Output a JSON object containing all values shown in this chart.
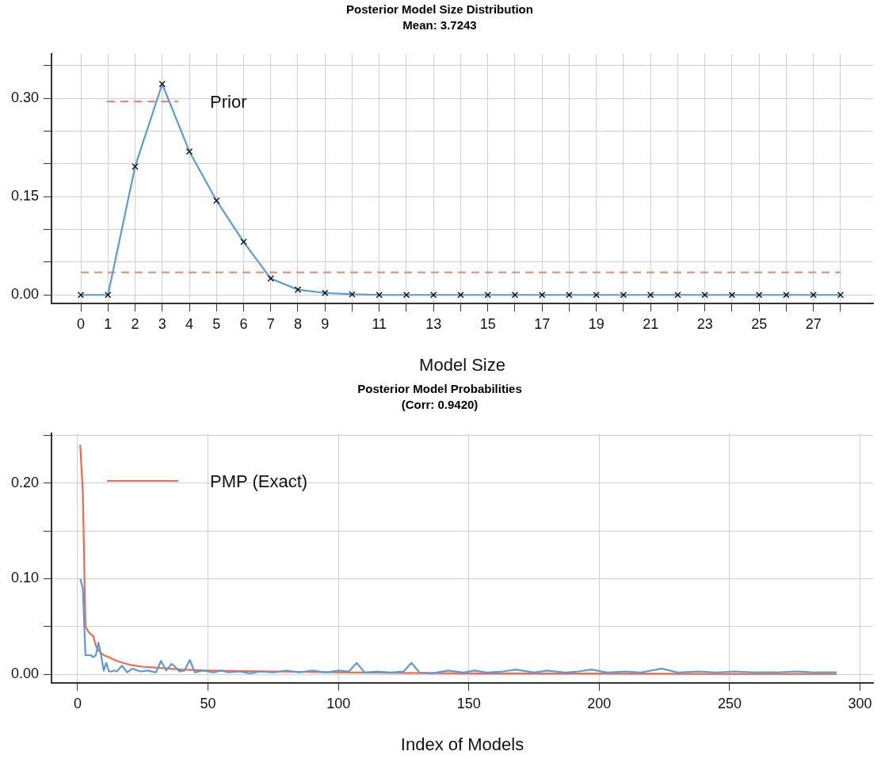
{
  "chart_data": [
    {
      "type": "line",
      "title": "Posterior Model Size Distribution",
      "subtitle": "Mean: 3.7243",
      "xlabel": "Model Size",
      "grid": true,
      "legend": "top left",
      "x": [
        0,
        1,
        2,
        3,
        4,
        5,
        6,
        7,
        8,
        9,
        10,
        11,
        12,
        13,
        14,
        15,
        16,
        17,
        18,
        19,
        20,
        21,
        22,
        23,
        24,
        25,
        26,
        27,
        28
      ],
      "xlim": [
        -1.08,
        29.2
      ],
      "xticks": [
        0,
        1,
        2,
        3,
        4,
        5,
        6,
        7,
        8,
        9,
        {
          "value": 10,
          "label": null
        },
        11,
        {
          "value": 12,
          "label": null
        },
        13,
        {
          "value": 14,
          "label": null
        },
        15,
        {
          "value": 16,
          "label": null
        },
        17,
        {
          "value": 18,
          "label": null
        },
        19,
        {
          "value": 20,
          "label": null
        },
        21,
        {
          "value": 22,
          "label": null
        },
        23,
        {
          "value": 24,
          "label": null
        },
        25,
        {
          "value": 26,
          "label": null
        },
        27,
        {
          "value": 28,
          "label": null
        }
      ],
      "ylim": [
        -0.013,
        0.368
      ],
      "yticks": [
        {
          "value": 0,
          "label": "0.00"
        },
        {
          "value": 0.05,
          "label": null
        },
        {
          "value": 0.1,
          "label": null
        },
        {
          "value": 0.15,
          "label": "0.15"
        },
        {
          "value": 0.2,
          "label": null
        },
        {
          "value": 0.25,
          "label": null
        },
        {
          "value": 0.3,
          "label": "0.30"
        },
        {
          "value": 0.35,
          "label": null
        }
      ],
      "series": [
        {
          "color": "#5b9bd5",
          "marker": "cross",
          "line_style": "solid",
          "values": [
            0,
            0,
            0.196,
            0.322,
            0.219,
            0.144,
            0.081,
            0.025,
            0.008,
            0.003,
            0.001,
            0,
            0,
            0,
            0,
            0,
            0,
            0,
            0,
            0,
            0,
            0,
            0,
            0,
            0,
            0,
            0,
            0,
            0
          ]
        },
        {
          "name": "Prior",
          "color": "#f4826e",
          "marker": "none",
          "line_style": "dashed",
          "values": [
            0.0345,
            0.0345,
            0.0345,
            0.0345,
            0.0345,
            0.0345,
            0.0345,
            0.0345,
            0.0345,
            0.0345,
            0.0345,
            0.0345,
            0.0345,
            0.0345,
            0.0345,
            0.0345,
            0.0345,
            0.0345,
            0.0345,
            0.0345,
            0.0345,
            0.0345,
            0.0345,
            0.0345,
            0.0345,
            0.0345,
            0.0345,
            0.0345,
            0.0345
          ]
        }
      ]
    },
    {
      "type": "line",
      "title": "Posterior Model Probabilities",
      "subtitle": "(Corr: 0.9420)",
      "xlabel": "Index of Models",
      "grid": true,
      "legend": "top left",
      "xlim": [
        -10,
        305
      ],
      "xticks": [
        0,
        50,
        100,
        150,
        200,
        250,
        300
      ],
      "ylim": [
        -0.009,
        0.252
      ],
      "yticks": [
        {
          "value": 0,
          "label": "0.00"
        },
        {
          "value": 0.05,
          "label": null
        },
        {
          "value": 0.1,
          "label": "0.10"
        },
        {
          "value": 0.15,
          "label": null
        },
        {
          "value": 0.2,
          "label": "0.20"
        },
        {
          "value": 0.25,
          "label": null
        }
      ],
      "series": [
        {
          "color": "#5b9bd5",
          "marker": "none",
          "line_style": "solid",
          "x": [
            1,
            2,
            3,
            4,
            5,
            6,
            7,
            8,
            9,
            10,
            11,
            12,
            13,
            14,
            15,
            17,
            19,
            21,
            24,
            27,
            30,
            31,
            32,
            34,
            36,
            37,
            39,
            41,
            43,
            45,
            48,
            52,
            55,
            58,
            62,
            66,
            70,
            75,
            80,
            85,
            90,
            95,
            100,
            104,
            107,
            110,
            115,
            120,
            125,
            128,
            131,
            136,
            142,
            148,
            152,
            157,
            163,
            168,
            175,
            180,
            187,
            192,
            197,
            203,
            210,
            216,
            224,
            230,
            238,
            245,
            252,
            260,
            268,
            275,
            283,
            291
          ],
          "values": [
            0.1,
            0.09,
            0.02,
            0.02,
            0.02,
            0.018,
            0.02,
            0.033,
            0.02,
            0.004,
            0.012,
            0.003,
            0.003,
            0.004,
            0.003,
            0.009,
            0.002,
            0.006,
            0.003,
            0.004,
            0.002,
            0.008,
            0.014,
            0.004,
            0.011,
            0.009,
            0.003,
            0.004,
            0.015,
            0.002,
            0.004,
            0.002,
            0.004,
            0.002,
            0.003,
            0.001,
            0.003,
            0.002,
            0.004,
            0.002,
            0.004,
            0.002,
            0.004,
            0.003,
            0.012,
            0.002,
            0.003,
            0.002,
            0.003,
            0.012,
            0.002,
            0.001,
            0.004,
            0.002,
            0.004,
            0.002,
            0.003,
            0.005,
            0.002,
            0.004,
            0.002,
            0.003,
            0.005,
            0.002,
            0.003,
            0.002,
            0.006,
            0.002,
            0.003,
            0.002,
            0.003,
            0.002,
            0.002,
            0.003,
            0.002,
            0.002
          ]
        },
        {
          "name": "PMP (Exact)",
          "color": "#ee6a50",
          "marker": "none",
          "line_style": "solid",
          "x": [
            1,
            2,
            3,
            4,
            5,
            6,
            7,
            8,
            10,
            12,
            15,
            20,
            25,
            30,
            40,
            50,
            75,
            100,
            150,
            200,
            250,
            291
          ],
          "values": [
            0.24,
            0.19,
            0.05,
            0.045,
            0.042,
            0.04,
            0.03,
            0.025,
            0.02,
            0.018,
            0.014,
            0.01,
            0.008,
            0.007,
            0.005,
            0.004,
            0.003,
            0.002,
            0.001,
            0.0008,
            0.0005,
            0.0005
          ]
        }
      ]
    }
  ]
}
